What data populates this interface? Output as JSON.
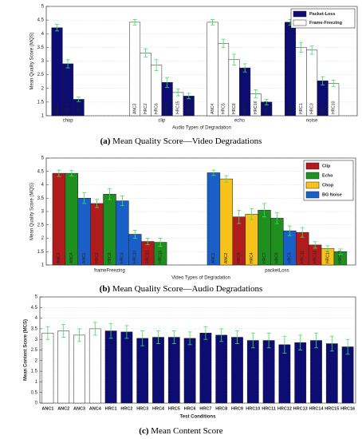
{
  "chart_data": [
    {
      "type": "grouped-bar",
      "caption_label": "(a)",
      "caption": "Mean Quality Score—Video Degradations",
      "ylabel": "Mean Quality Score (MQS)",
      "xlabel": "Audio Types of Degradation",
      "ylim": [
        1,
        5
      ],
      "yticks": [
        1,
        1.5,
        2,
        2.5,
        3,
        3.5,
        4,
        4.5,
        5
      ],
      "grid": true,
      "legend": "top-right",
      "series": [
        {
          "name": "Packet-Loss",
          "color": "#0c0c72"
        },
        {
          "name": "Frame-Freezing",
          "color": "#ffffff"
        }
      ],
      "groups": [
        {
          "name": "chop",
          "bars": [
            {
              "label": "ANC2",
              "value": 4.22,
              "error": 0.12,
              "series": 0
            },
            {
              "label": "HRC4",
              "value": 2.9,
              "error": 0.15,
              "series": 0
            },
            {
              "label": "HRC14",
              "value": 1.6,
              "error": 0.08,
              "series": 0
            }
          ]
        },
        {
          "name": "clip",
          "bars": [
            {
              "label": "ANC3",
              "value": 4.42,
              "error": 0.1,
              "series": 1
            },
            {
              "label": "HRC2",
              "value": 3.3,
              "error": 0.15,
              "series": 1
            },
            {
              "label": "HRC6",
              "value": 2.85,
              "error": 0.2,
              "series": 1
            },
            {
              "label": "HRC11",
              "value": 2.22,
              "error": 0.18,
              "series": 0
            },
            {
              "label": "HRC15",
              "value": 1.85,
              "error": 0.12,
              "series": 1
            },
            {
              "label": "HRC13",
              "value": 1.72,
              "error": 0.1,
              "series": 0
            }
          ]
        },
        {
          "name": "echo",
          "bars": [
            {
              "label": "ANC4",
              "value": 4.42,
              "error": 0.1,
              "series": 1
            },
            {
              "label": "HRC5",
              "value": 3.65,
              "error": 0.15,
              "series": 1
            },
            {
              "label": "HRC8",
              "value": 3.05,
              "error": 0.2,
              "series": 1
            },
            {
              "label": "HRC9",
              "value": 2.75,
              "error": 0.15,
              "series": 0
            },
            {
              "label": "HRC16",
              "value": 1.8,
              "error": 0.15,
              "series": 1
            },
            {
              "label": "HRC12",
              "value": 1.5,
              "error": 0.1,
              "series": 0
            }
          ]
        },
        {
          "name": "noise",
          "bars": [
            {
              "label": "ANC1",
              "value": 4.42,
              "error": 0.1,
              "series": 0
            },
            {
              "label": "HRC1",
              "value": 3.5,
              "error": 0.18,
              "series": 1
            },
            {
              "label": "HRC3",
              "value": 3.4,
              "error": 0.15,
              "series": 1
            },
            {
              "label": "HRC7",
              "value": 2.28,
              "error": 0.15,
              "series": 0
            },
            {
              "label": "HRC10",
              "value": 2.18,
              "error": 0.12,
              "series": 1
            }
          ]
        }
      ]
    },
    {
      "type": "grouped-bar",
      "caption_label": "(b)",
      "caption": "Mean Quality Score—Audio Degradations",
      "ylabel": "Mean Quality Score (MQS)",
      "xlabel": "Video Types of Degradation",
      "ylim": [
        1,
        5
      ],
      "yticks": [
        1,
        1.5,
        2,
        2.5,
        3,
        3.5,
        4,
        4.5,
        5
      ],
      "grid": true,
      "legend": "top-right",
      "series": [
        {
          "name": "Clip",
          "color": "#b01c1c"
        },
        {
          "name": "Echo",
          "color": "#1f8f1f"
        },
        {
          "name": "Chop",
          "color": "#f7c21c"
        },
        {
          "name": "BG Noise",
          "color": "#1a5fc8"
        }
      ],
      "groups": [
        {
          "name": "frameFreezing",
          "bars": [
            {
              "label": "ANC3",
              "value": 4.43,
              "error": 0.12,
              "series": 0
            },
            {
              "label": "ANC4",
              "value": 4.43,
              "error": 0.1,
              "series": 1
            },
            {
              "label": "ANC1",
              "value": 3.5,
              "error": 0.2,
              "series": 3
            },
            {
              "label": "HRC2",
              "value": 3.3,
              "error": 0.15,
              "series": 0
            },
            {
              "label": "HRC5",
              "value": 3.65,
              "error": 0.2,
              "series": 1
            },
            {
              "label": "HRC3",
              "value": 3.4,
              "error": 0.18,
              "series": 3
            },
            {
              "label": "HRC10",
              "value": 2.15,
              "error": 0.15,
              "series": 3
            },
            {
              "label": "HRC12",
              "value": 1.88,
              "error": 0.12,
              "series": 0
            },
            {
              "label": "HRC15",
              "value": 1.85,
              "error": 0.15,
              "series": 1
            }
          ]
        },
        {
          "name": "packetLoss",
          "bars": [
            {
              "label": "ANC1",
              "value": 4.45,
              "error": 0.1,
              "series": 3
            },
            {
              "label": "ANC2",
              "value": 4.22,
              "error": 0.12,
              "series": 2
            },
            {
              "label": "HRC6",
              "value": 2.8,
              "error": 0.25,
              "series": 0
            },
            {
              "label": "HRC4",
              "value": 2.9,
              "error": 0.2,
              "series": 2
            },
            {
              "label": "HRC7",
              "value": 3.05,
              "error": 0.25,
              "series": 1
            },
            {
              "label": "HRC9",
              "value": 2.75,
              "error": 0.2,
              "series": 1
            },
            {
              "label": "HRC5",
              "value": 2.28,
              "error": 0.18,
              "series": 3
            },
            {
              "label": "HRC11",
              "value": 2.22,
              "error": 0.18,
              "series": 0
            },
            {
              "label": "HRC13",
              "value": 1.75,
              "error": 0.12,
              "series": 0
            },
            {
              "label": "HRC14",
              "value": 1.62,
              "error": 0.1,
              "series": 2
            },
            {
              "label": "HRC16",
              "value": 1.5,
              "error": 0.1,
              "series": 1
            }
          ]
        }
      ]
    },
    {
      "type": "bar",
      "caption_label": "(c)",
      "caption": "Mean Content Score",
      "ylabel": "Mean Content Score (MCS)",
      "xlabel": "Test Conditions",
      "ylim": [
        0,
        5
      ],
      "yticks": [
        0,
        0.5,
        1,
        1.5,
        2,
        2.5,
        3,
        3.5,
        4,
        4.5,
        5
      ],
      "grid": true,
      "series": [
        {
          "color": "#ffffff"
        },
        {
          "color": "#0c0c72"
        }
      ],
      "categories": [
        "ANC1",
        "ANC2",
        "ANC3",
        "ANC4",
        "HRC1",
        "HRC2",
        "HRC3",
        "HRC4",
        "HRC5",
        "HRC6",
        "HRC7",
        "HRC8",
        "HRC9",
        "HRC10",
        "HRC11",
        "HRC12",
        "HRC13",
        "HRC14",
        "HRC15",
        "HRC16"
      ],
      "values": [
        3.3,
        3.4,
        3.2,
        3.5,
        3.4,
        3.35,
        3.05,
        3.1,
        3.1,
        3.05,
        3.3,
        3.2,
        3.1,
        2.95,
        2.95,
        2.75,
        2.85,
        2.95,
        2.8,
        2.65
      ],
      "errors": [
        0.3,
        0.3,
        0.3,
        0.3,
        0.35,
        0.3,
        0.35,
        0.3,
        0.3,
        0.3,
        0.3,
        0.3,
        0.3,
        0.35,
        0.35,
        0.4,
        0.35,
        0.35,
        0.35,
        0.35
      ],
      "bar_series": [
        0,
        0,
        0,
        0,
        1,
        1,
        1,
        1,
        1,
        1,
        1,
        1,
        1,
        1,
        1,
        1,
        1,
        1,
        1,
        1
      ]
    }
  ]
}
